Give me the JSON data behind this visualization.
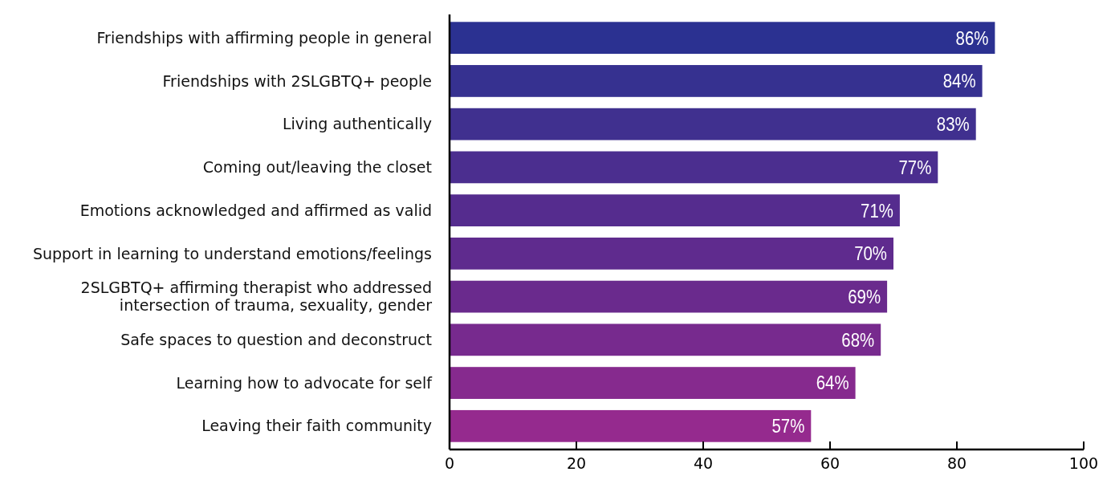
{
  "chart_data": {
    "type": "bar",
    "orientation": "horizontal",
    "categories": [
      "Friendships with affirming people in general",
      "Friendships with 2SLGBTQ+ people",
      "Living authentically",
      "Coming out/leaving the closet",
      "Emotions acknowledged and affirmed as valid",
      "Support in learning to understand emotions/feelings",
      "2SLGBTQ+ affirming therapist who addressed\nintersection of trauma, sexuality, gender",
      "Safe spaces to question and deconstruct",
      "Learning how to advocate for self",
      "Leaving their faith community"
    ],
    "values": [
      86,
      84,
      83,
      77,
      71,
      70,
      69,
      68,
      64,
      57
    ],
    "colors": [
      "#2b3191",
      "#363190",
      "#40308f",
      "#4b2e8f",
      "#552c8e",
      "#5f2b8e",
      "#6a2a8d",
      "#772a8e",
      "#862a8e",
      "#952a8e"
    ],
    "value_labels": [
      "86%",
      "84%",
      "83%",
      "77%",
      "71%",
      "70%",
      "69%",
      "68%",
      "64%",
      "57%"
    ],
    "xlim": [
      0,
      100
    ],
    "xticks": [
      0,
      20,
      40,
      60,
      80,
      100
    ],
    "grid": false
  }
}
